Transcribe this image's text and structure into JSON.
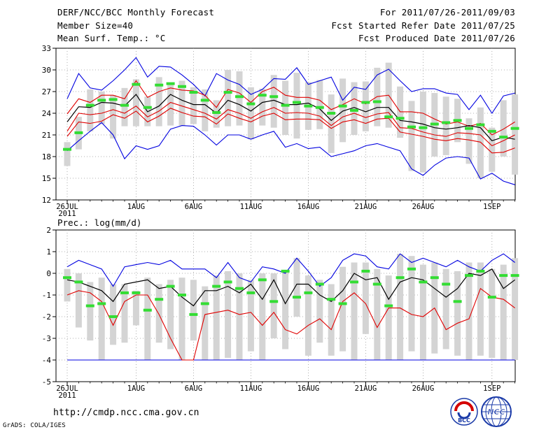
{
  "header": {
    "left_line1": "DERF/NCC/BCC Monthly Forecast",
    "left_line2": "Member Size=40",
    "left_line3": "Mean Surf. Temp.: °C",
    "right_line1": "For 2011/07/26-2011/09/03",
    "right_line2": "Fcst Started Refer Date 2011/07/25",
    "right_line3": "Fcst Produced Date 2011/07/26"
  },
  "footer": {
    "url": "http://cmdp.ncc.cma.gov.cn",
    "grads": "GrADS: COLA/IGES",
    "bcc_logo_text": "BCC",
    "ncc_logo_text": "NCC"
  },
  "colors": {
    "upper_lower_envelope": "#0000e0",
    "percentile_lines": "#e00000",
    "median_line": "#000000",
    "box": "#d4d4d4",
    "ensemble_mean_marker": "#33dd33",
    "grid": "#999999"
  },
  "chart_data": [
    {
      "type": "line",
      "title": "Mean Surf. Temp.: °C",
      "ylim": [
        12,
        33
      ],
      "yticks": [
        "33",
        "30",
        "27",
        "24",
        "21",
        "18",
        "15",
        "12"
      ],
      "xtick_labels": [
        "26JUL",
        "1AUG",
        "6AUG",
        "11AUG",
        "16AUG",
        "21AUG",
        "26AUG",
        "1SEP"
      ],
      "xtick_days": [
        0,
        6,
        11,
        16,
        21,
        26,
        31,
        37
      ],
      "year_label": "2011",
      "n_days": 40,
      "series": [
        {
          "name": "max",
          "values": [
            26.0,
            29.5,
            27.5,
            27.2,
            28.5,
            30.0,
            31.7,
            29.0,
            30.5,
            30.4,
            29.3,
            28.0,
            26.4,
            29.5,
            28.6,
            28.0,
            26.6,
            27.3,
            28.8,
            28.7,
            30.3,
            28.0,
            28.5,
            29.0,
            25.8,
            27.6,
            27.3,
            29.3,
            30.1,
            28.5,
            27.0,
            27.4,
            27.4,
            26.8,
            26.6,
            24.5,
            26.5,
            24.0,
            26.4,
            26.8
          ]
        },
        {
          "name": "p90",
          "values": [
            23.9,
            26.0,
            25.5,
            26.5,
            26.5,
            26.0,
            28.5,
            26.2,
            27.0,
            27.5,
            27.2,
            27.1,
            26.5,
            24.8,
            27.3,
            26.8,
            25.5,
            27.0,
            27.6,
            26.5,
            26.2,
            26.2,
            25.8,
            24.5,
            25.2,
            26.0,
            25.3,
            26.3,
            26.5,
            24.2,
            24.2,
            24.0,
            23.2,
            22.5,
            22.8,
            22.2,
            22.6,
            21.0,
            21.8,
            22.8
          ]
        },
        {
          "name": "median",
          "values": [
            22.8,
            24.9,
            24.8,
            25.5,
            25.4,
            25.0,
            26.6,
            24.2,
            25.0,
            26.6,
            25.8,
            25.2,
            25.2,
            24.0,
            25.8,
            25.2,
            24.3,
            25.5,
            25.8,
            25.2,
            25.2,
            25.4,
            24.6,
            23.0,
            24.3,
            24.8,
            24.2,
            24.8,
            24.8,
            23.0,
            22.8,
            22.5,
            22.0,
            21.8,
            22.0,
            22.3,
            22.0,
            20.2,
            20.7,
            20.4
          ]
        },
        {
          "name": "p10",
          "values": [
            21.5,
            24.0,
            23.8,
            24.0,
            24.5,
            24.0,
            25.0,
            23.5,
            24.3,
            25.5,
            25.0,
            24.5,
            24.0,
            23.2,
            24.5,
            24.0,
            23.3,
            24.2,
            24.8,
            24.0,
            24.1,
            24.0,
            23.6,
            22.3,
            23.5,
            24.0,
            23.4,
            23.9,
            24.1,
            22.0,
            21.9,
            21.4,
            21.0,
            20.8,
            21.3,
            21.2,
            21.0,
            19.5,
            20.2,
            21.0
          ]
        },
        {
          "name": "p10_low",
          "values": [
            20.8,
            22.8,
            22.6,
            22.9,
            23.8,
            23.3,
            24.3,
            22.8,
            23.6,
            24.7,
            24.1,
            23.6,
            23.5,
            22.5,
            23.9,
            23.3,
            22.8,
            23.6,
            24.0,
            23.1,
            23.2,
            23.2,
            23.1,
            21.9,
            22.8,
            23.1,
            22.6,
            23.2,
            23.3,
            21.4,
            21.1,
            20.8,
            20.4,
            20.2,
            20.5,
            20.3,
            20.0,
            18.5,
            18.6,
            19.2
          ]
        },
        {
          "name": "min",
          "values": [
            18.8,
            20.2,
            21.5,
            22.7,
            21.0,
            17.7,
            19.5,
            19.0,
            19.5,
            21.8,
            22.3,
            22.2,
            21.0,
            19.6,
            21.0,
            21.0,
            20.4,
            21.0,
            21.5,
            19.3,
            19.8,
            19.1,
            19.3,
            18.0,
            18.4,
            18.8,
            19.5,
            19.8,
            19.3,
            18.8,
            16.3,
            15.4,
            16.8,
            17.8,
            18.0,
            17.8,
            14.9,
            15.7,
            14.6,
            14.1
          ]
        },
        {
          "name": "ensemble_mean",
          "values": [
            19.0,
            21.3,
            25.1,
            25.8,
            25.9,
            25.1,
            28.0,
            24.8,
            27.9,
            28.1,
            27.7,
            26.9,
            25.8,
            24.1,
            26.9,
            26.3,
            25.3,
            26.5,
            26.3,
            25.1,
            25.5,
            25.0,
            24.8,
            24.0,
            25.0,
            24.4,
            25.5,
            25.6,
            23.5,
            23.3,
            22.1,
            22.0,
            22.5,
            22.7,
            23.0,
            21.9,
            22.4,
            21.5,
            20.7,
            21.9
          ]
        },
        {
          "name": "box_high",
          "values": [
            20.0,
            23.5,
            27.3,
            27.0,
            26.5,
            27.5,
            28.7,
            26.3,
            29.0,
            28.0,
            28.5,
            27.6,
            27.3,
            25.8,
            30.0,
            29.8,
            27.6,
            27.4,
            29.3,
            28.5,
            29.6,
            28.3,
            28.6,
            26.6,
            28.8,
            28.3,
            28.4,
            30.3,
            31.0,
            27.7,
            25.7,
            27.0,
            26.8,
            26.3,
            26.0,
            23.3,
            24.8,
            22.0,
            25.8,
            26.6
          ]
        },
        {
          "name": "box_low",
          "values": [
            16.7,
            19.0,
            21.5,
            22.5,
            20.5,
            22.2,
            22.2,
            22.2,
            22.2,
            22.3,
            22.3,
            22.5,
            21.5,
            22.0,
            22.2,
            22.3,
            20.4,
            22.3,
            22.0,
            21.0,
            20.5,
            21.7,
            21.8,
            18.5,
            20.0,
            21.0,
            21.5,
            22.2,
            22.0,
            20.6,
            16.0,
            15.8,
            18.0,
            18.2,
            20.0,
            17.0,
            15.0,
            15.9,
            18.0,
            15.5
          ]
        }
      ]
    },
    {
      "type": "line",
      "title": "Prec.: log(mm/d)",
      "ylim": [
        -5,
        2
      ],
      "yticks": [
        "2",
        "1",
        "0",
        "-1",
        "-2",
        "-3",
        "-4",
        "-5"
      ],
      "xtick_labels": [
        "26JUL",
        "1AUG",
        "6AUG",
        "11AUG",
        "16AUG",
        "21AUG",
        "26AUG",
        "1SEP"
      ],
      "xtick_days": [
        0,
        6,
        11,
        16,
        21,
        26,
        31,
        37
      ],
      "year_label": "2011",
      "n_days": 40,
      "series": [
        {
          "name": "max",
          "values": [
            0.3,
            0.6,
            0.4,
            0.2,
            -0.6,
            0.3,
            0.4,
            0.5,
            0.4,
            0.6,
            0.2,
            0.2,
            0.2,
            -0.2,
            0.5,
            -0.2,
            -0.4,
            0.3,
            0.2,
            0.0,
            0.7,
            0.1,
            -0.6,
            -0.2,
            0.6,
            0.9,
            0.8,
            0.3,
            0.2,
            0.9,
            0.5,
            0.7,
            0.5,
            0.3,
            0.6,
            0.3,
            0.1,
            0.6,
            0.9,
            0.5
          ]
        },
        {
          "name": "median",
          "values": [
            -0.3,
            -0.4,
            -0.6,
            -0.8,
            -1.3,
            -0.5,
            -0.4,
            -0.3,
            -0.7,
            -0.6,
            -1.1,
            -1.5,
            -0.8,
            -0.8,
            -0.6,
            -0.9,
            -0.5,
            -1.2,
            -0.3,
            -1.4,
            -0.5,
            -0.5,
            -1.0,
            -1.3,
            -0.8,
            0.0,
            -0.3,
            -0.2,
            -1.2,
            -0.4,
            -0.2,
            -0.3,
            -0.7,
            -1.1,
            -0.7,
            0.0,
            -0.1,
            0.2,
            -0.7,
            -0.3
          ]
        },
        {
          "name": "p10",
          "values": [
            -1.0,
            -0.8,
            -0.9,
            -1.3,
            -2.4,
            -1.3,
            -1.0,
            -1.0,
            -1.9,
            -3.0,
            -4.0,
            -4.0,
            -1.9,
            -1.8,
            -1.7,
            -1.9,
            -1.8,
            -2.4,
            -1.8,
            -2.6,
            -2.8,
            -2.4,
            -2.1,
            -2.6,
            -1.3,
            -0.9,
            -1.4,
            -2.5,
            -1.6,
            -1.6,
            -1.9,
            -2.0,
            -1.6,
            -2.6,
            -2.3,
            -2.1,
            -0.7,
            -1.1,
            -1.2,
            -1.6
          ]
        },
        {
          "name": "min",
          "values": [
            -4.0,
            -4.0,
            -4.0,
            -4.0,
            -4.0,
            -4.0,
            -4.0,
            -4.0,
            -4.0,
            -4.0,
            -4.0,
            -4.0,
            -4.0,
            -4.0,
            -4.0,
            -4.0,
            -4.0,
            -4.0,
            -4.0,
            -4.0,
            -4.0,
            -4.0,
            -4.0,
            -4.0,
            -4.0,
            -4.0,
            -4.0,
            -4.0,
            -4.0,
            -4.0,
            -4.0,
            -4.0,
            -4.0,
            -4.0,
            -4.0,
            -4.0,
            -4.0,
            -4.0,
            -4.0,
            -4.0
          ]
        },
        {
          "name": "ensemble_mean",
          "values": [
            -0.2,
            -0.4,
            -1.5,
            -1.4,
            -2.0,
            -0.9,
            -0.9,
            -1.7,
            -1.2,
            -0.6,
            -1.0,
            -1.9,
            -1.4,
            -0.6,
            -0.4,
            -0.7,
            -0.9,
            -0.3,
            -1.3,
            0.1,
            -1.1,
            -0.9,
            -0.5,
            -1.2,
            -1.4,
            -0.4,
            0.1,
            -0.5,
            -1.5,
            -0.2,
            0.2,
            -0.4,
            -0.2,
            -0.5,
            -1.3,
            -0.1,
            0.1,
            -1.1,
            -0.1,
            -0.1
          ]
        },
        {
          "name": "box_high",
          "values": [
            0.2,
            0.0,
            -0.4,
            -0.2,
            -0.5,
            -0.5,
            -0.8,
            -0.2,
            -0.5,
            -0.3,
            -0.2,
            -0.3,
            -0.6,
            -0.1,
            0.1,
            0.0,
            -0.3,
            0.0,
            0.0,
            0.1,
            0.7,
            -0.1,
            -0.3,
            -0.5,
            0.3,
            0.5,
            0.5,
            0.2,
            -0.1,
            0.9,
            0.8,
            0.4,
            0.5,
            0.2,
            0.1,
            0.5,
            0.5,
            0.2,
            0.4,
            0.7
          ]
        },
        {
          "name": "box_low",
          "values": [
            -1.3,
            -2.5,
            -3.1,
            -4.0,
            -3.3,
            -3.2,
            -2.4,
            -4.0,
            -3.2,
            -3.5,
            -4.0,
            -3.1,
            -4.0,
            -4.0,
            -3.9,
            -4.0,
            -3.6,
            -4.0,
            -3.0,
            -3.5,
            -2.0,
            -3.8,
            -3.2,
            -3.8,
            -3.6,
            -4.0,
            -2.8,
            -4.0,
            -4.0,
            -4.0,
            -3.6,
            -4.0,
            -3.7,
            -3.5,
            -3.8,
            -4.0,
            -3.8,
            -3.9,
            -4.0,
            -4.0
          ]
        }
      ]
    }
  ]
}
